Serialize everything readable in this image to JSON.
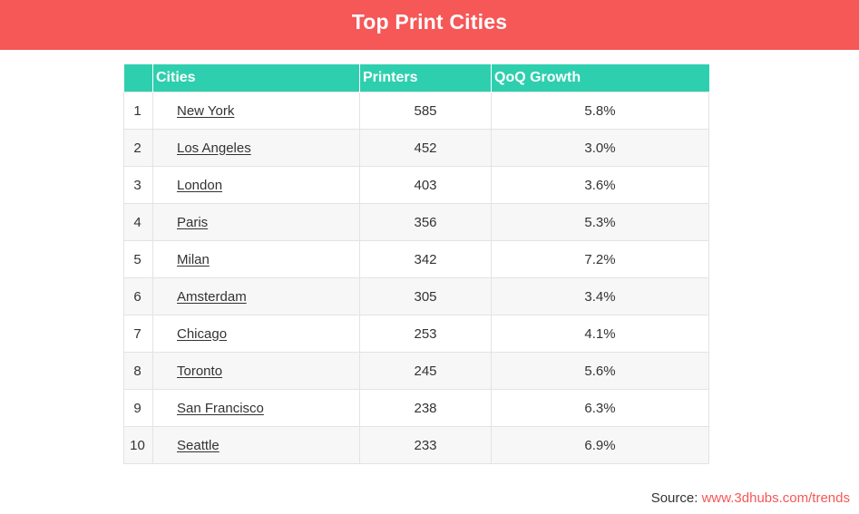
{
  "title": "Top Print Cities",
  "table": {
    "headers": {
      "rank": "",
      "cities": "Cities",
      "printers": "Printers",
      "growth": "QoQ Growth"
    },
    "rows": [
      {
        "rank": "1",
        "city": "New York",
        "printers": "585",
        "growth": "5.8%"
      },
      {
        "rank": "2",
        "city": "Los Angeles",
        "printers": "452",
        "growth": "3.0%"
      },
      {
        "rank": "3",
        "city": "London",
        "printers": "403",
        "growth": "3.6%"
      },
      {
        "rank": "4",
        "city": "Paris",
        "printers": "356",
        "growth": "5.3%"
      },
      {
        "rank": "5",
        "city": "Milan",
        "printers": "342",
        "growth": "7.2%"
      },
      {
        "rank": "6",
        "city": "Amsterdam",
        "printers": "305",
        "growth": "3.4%"
      },
      {
        "rank": "7",
        "city": "Chicago",
        "printers": "253",
        "growth": "4.1%"
      },
      {
        "rank": "8",
        "city": "Toronto",
        "printers": "245",
        "growth": "5.6%"
      },
      {
        "rank": "9",
        "city": "San Francisco",
        "printers": "238",
        "growth": "6.3%"
      },
      {
        "rank": "10",
        "city": "Seattle",
        "printers": "233",
        "growth": "6.9%"
      }
    ]
  },
  "source": {
    "label": "Source:",
    "link_text": "www.3dhubs.com/trends"
  },
  "colors": {
    "banner": "#f65757",
    "header": "#2ecfae",
    "link_accent": "#f65757"
  }
}
